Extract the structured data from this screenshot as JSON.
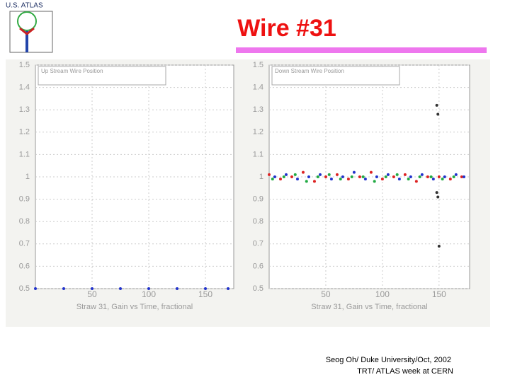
{
  "header": {
    "logo_text": "U.S. ATLAS",
    "title": "Wire #31"
  },
  "chart_data": [
    {
      "type": "scatter",
      "legend_title": "Up Stream Wire Position",
      "x_label": "Straw 31, Gain vs Time, fractional",
      "xlim": [
        0,
        175
      ],
      "xticks": [
        50,
        100,
        150
      ],
      "ylim": [
        0.5,
        1.5
      ],
      "yticks": [
        0.5,
        0.6,
        0.7,
        0.8,
        0.9,
        1,
        1.1,
        1.2,
        1.3,
        1.4,
        1.5
      ],
      "grid": true,
      "series": [
        {
          "color": "#2233cc",
          "x": [
            0,
            25,
            50,
            75,
            100,
            125,
            150,
            170
          ],
          "values": [
            0.5,
            0.5,
            0.5,
            0.5,
            0.5,
            0.5,
            0.5,
            0.5
          ]
        }
      ]
    },
    {
      "type": "scatter",
      "legend_title": "Down Stream Wire Position",
      "x_label": "Straw 31, Gain vs Time, fractional",
      "xlim": [
        0,
        177
      ],
      "xticks": [
        50,
        100,
        150
      ],
      "ylim": [
        0.5,
        1.5
      ],
      "yticks": [
        0.5,
        0.6,
        0.7,
        0.8,
        0.9,
        1,
        1.1,
        1.2,
        1.3,
        1.4,
        1.5
      ],
      "grid": true,
      "series": [
        {
          "color": "#dd2222",
          "x": [
            0,
            10,
            20,
            30,
            40,
            50,
            60,
            70,
            80,
            90,
            100,
            110,
            120,
            130,
            140,
            150,
            160,
            170
          ],
          "values": [
            1.01,
            0.99,
            1.0,
            1.02,
            0.98,
            1.0,
            1.01,
            0.99,
            1.0,
            1.02,
            0.99,
            1.0,
            1.01,
            0.98,
            1.0,
            1.0,
            0.99,
            1.0
          ]
        },
        {
          "color": "#2233cc",
          "x": [
            5,
            15,
            25,
            35,
            45,
            55,
            65,
            75,
            85,
            95,
            105,
            115,
            125,
            135,
            145,
            155,
            165,
            172
          ],
          "values": [
            1.0,
            1.01,
            0.99,
            1.0,
            1.01,
            0.99,
            1.0,
            1.02,
            0.99,
            1.0,
            1.01,
            0.99,
            1.0,
            1.01,
            0.99,
            1.0,
            1.01,
            1.0
          ]
        },
        {
          "color": "#22aa44",
          "x": [
            3,
            13,
            23,
            33,
            43,
            53,
            63,
            73,
            83,
            93,
            103,
            113,
            123,
            133,
            143,
            153,
            163
          ],
          "values": [
            0.99,
            1.0,
            1.01,
            0.98,
            1.0,
            1.01,
            0.99,
            1.0,
            1.0,
            0.98,
            1.0,
            1.01,
            0.99,
            1.0,
            1.0,
            0.99,
            1.0
          ]
        },
        {
          "color": "#333333",
          "x": [
            148,
            149,
            148,
            149,
            150
          ],
          "values": [
            1.32,
            1.28,
            0.93,
            0.91,
            0.69
          ]
        }
      ]
    }
  ],
  "footer": {
    "line1": "Seog Oh/ Duke University/Oct, 2002",
    "line2": "TRT/ ATLAS week at CERN"
  }
}
